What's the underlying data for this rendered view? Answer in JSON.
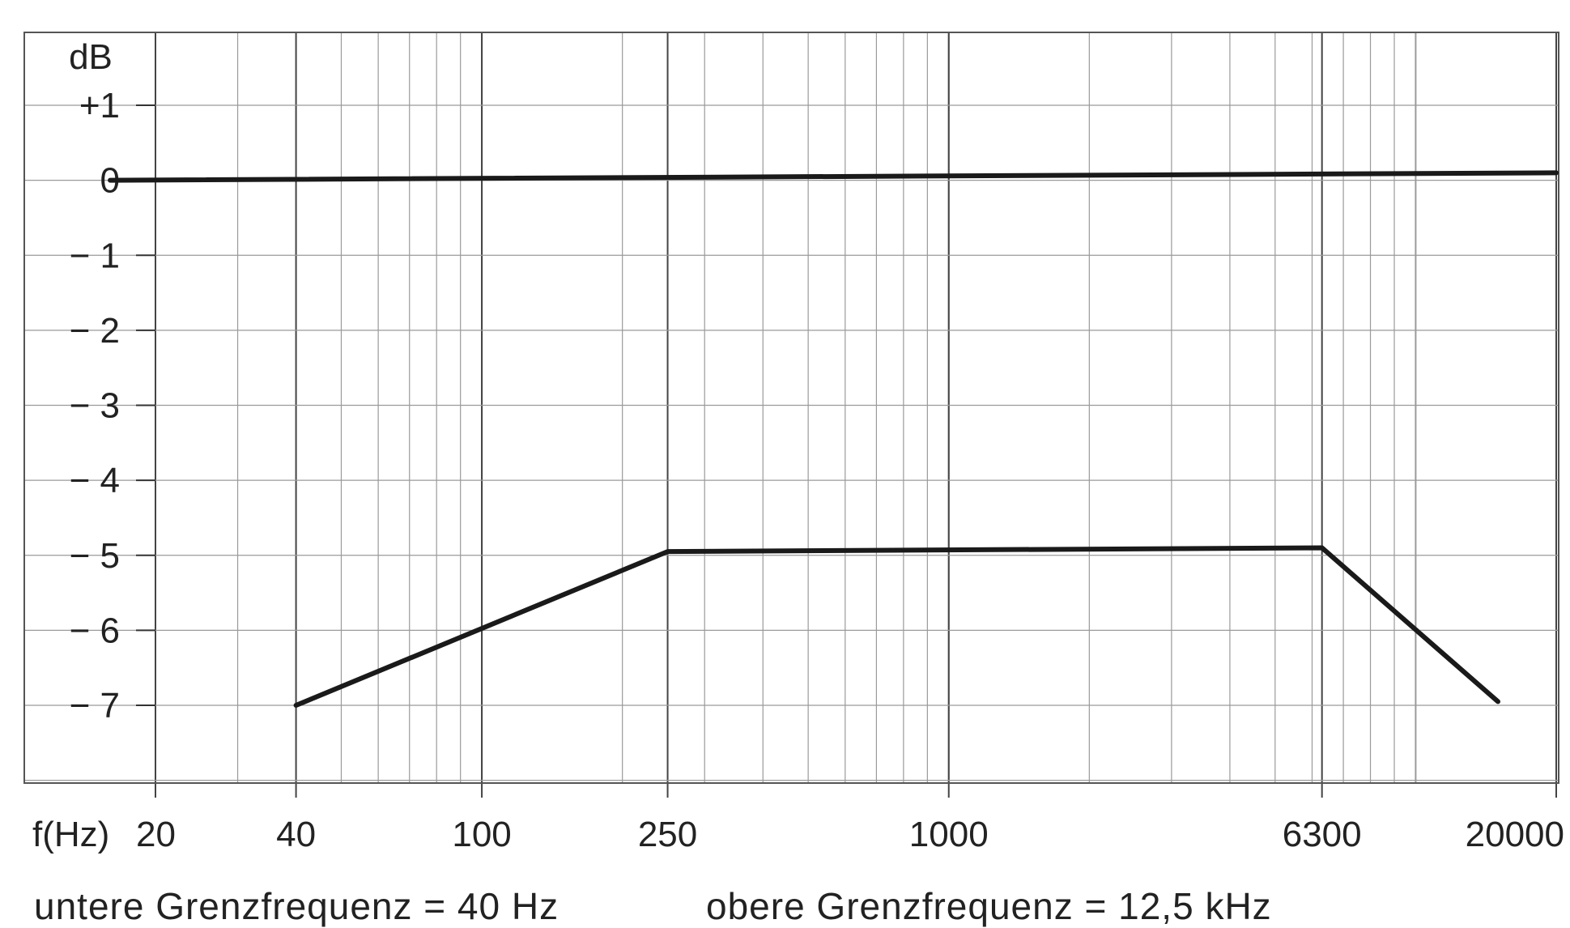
{
  "chart_data": {
    "type": "line",
    "x_scale": "log",
    "x_label": "f(Hz)",
    "y_label": "dB",
    "x_ticks": [
      20,
      40,
      100,
      250,
      1000,
      6300,
      20000
    ],
    "x_tick_labels": [
      "20",
      "40",
      "100",
      "250",
      "1000",
      "6300",
      "20000"
    ],
    "y_ticks": [
      1,
      0,
      -1,
      -2,
      -3,
      -4,
      -5,
      -6,
      -7
    ],
    "y_tick_labels": [
      "+1",
      "0",
      "− 1",
      "− 2",
      "− 3",
      "− 4",
      "− 5",
      "− 6",
      "− 7"
    ],
    "xlim": [
      16,
      20000
    ],
    "ylim": [
      -8,
      2
    ],
    "grid": true,
    "series": [
      {
        "points": [
          [
            16,
            0
          ],
          [
            20000,
            0.1
          ]
        ]
      },
      {
        "points": [
          [
            40,
            -7
          ],
          [
            250,
            -4.95
          ],
          [
            6300,
            -4.9
          ],
          [
            15000,
            -6.95
          ]
        ]
      }
    ]
  },
  "captions": {
    "lower": "untere Grenzfrequenz = 40 Hz",
    "upper": "obere Grenzfrequenz = 12,5 kHz"
  },
  "colors": {
    "curve": "#1a1a1a",
    "grid": "#9a9a9a",
    "frame": "#555555"
  }
}
